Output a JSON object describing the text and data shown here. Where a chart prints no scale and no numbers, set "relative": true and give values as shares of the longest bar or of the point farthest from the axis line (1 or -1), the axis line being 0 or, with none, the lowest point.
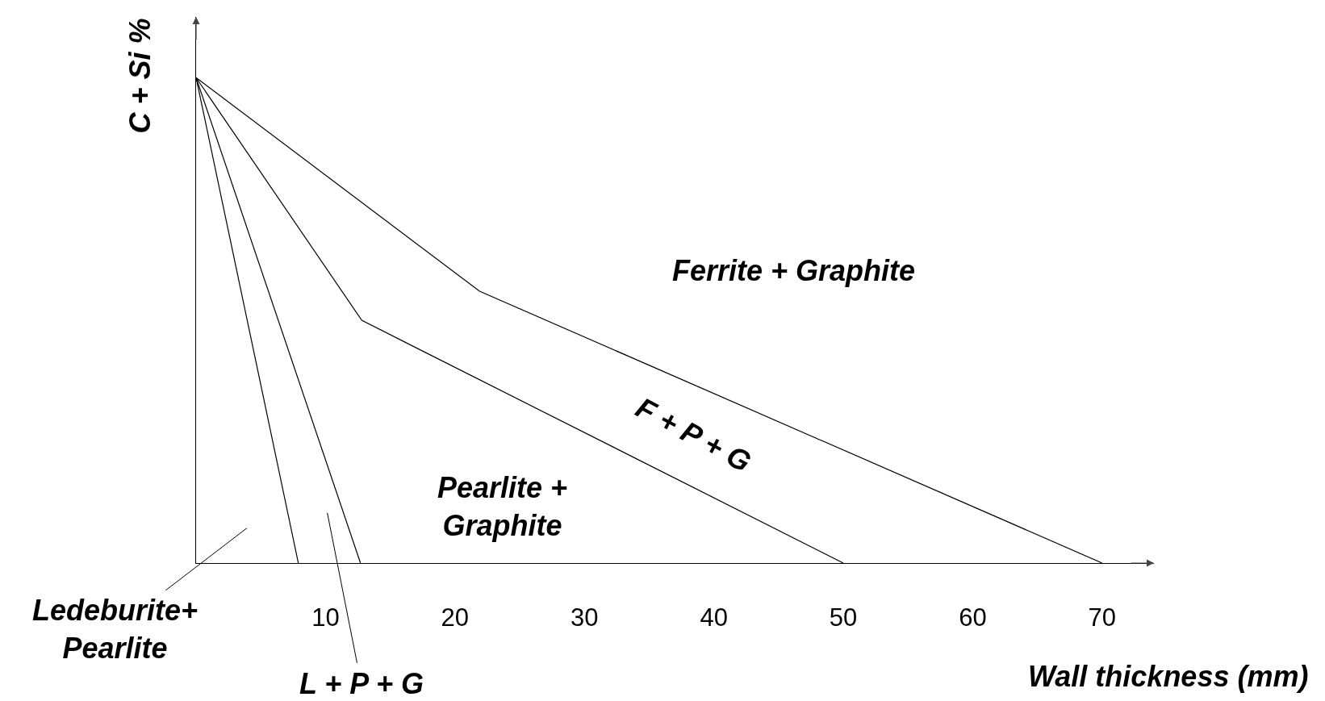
{
  "chart_data": {
    "type": "line",
    "relative": true,
    "xlabel": "Wall thickness (mm)",
    "ylabel": "C + Si %",
    "xlim": [
      0,
      74
    ],
    "xticks": [
      10,
      20,
      30,
      40,
      50,
      60,
      70
    ],
    "series": [
      {
        "color": "#000000",
        "x": [
          0,
          21.9,
          70
        ],
        "values": [
          1,
          0.56,
          0
        ]
      },
      {
        "color": "#000000",
        "x": [
          0,
          12.8,
          50
        ],
        "values": [
          1,
          0.5,
          0
        ]
      },
      {
        "color": "#000000",
        "x": [
          0,
          12.7
        ],
        "values": [
          1,
          0
        ]
      },
      {
        "color": "#000000",
        "x": [
          0,
          7.9
        ],
        "values": [
          1,
          0
        ]
      }
    ],
    "annotations": [
      "Ferrite + Graphite",
      "F + P + G",
      "Pearlite +\nGraphite",
      "Ledeburite+\nPearlite",
      "L + P + G"
    ],
    "grid": false,
    "marker": "none",
    "line_style": "solid"
  }
}
